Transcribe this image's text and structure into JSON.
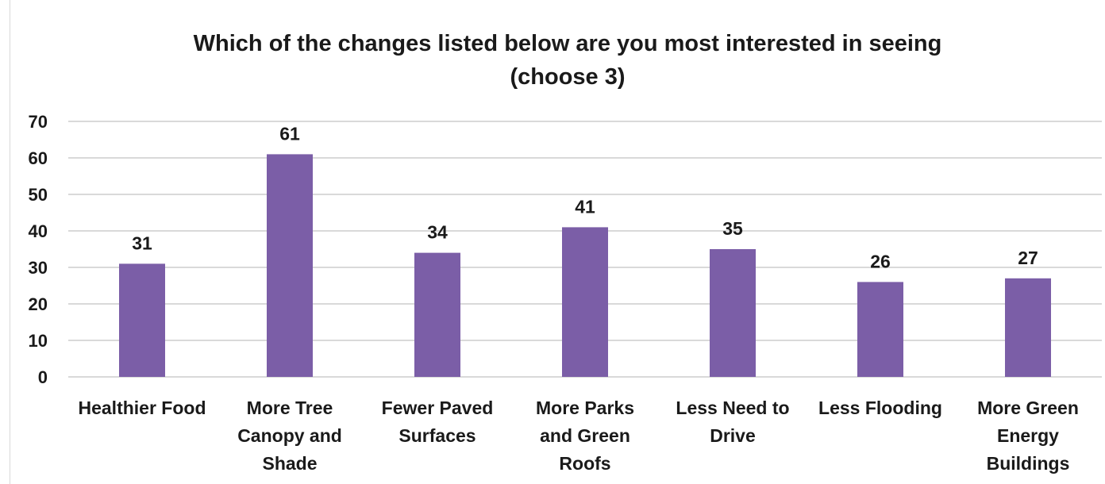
{
  "chart_data": {
    "type": "bar",
    "title": "Which of the changes listed below are you most interested in seeing",
    "subtitle": "(choose 3)",
    "categories": [
      [
        "Healthier Food"
      ],
      [
        "More Tree",
        "Canopy and",
        "Shade"
      ],
      [
        "Fewer Paved",
        "Surfaces"
      ],
      [
        "More Parks",
        "and Green",
        "Roofs"
      ],
      [
        "Less Need to",
        "Drive"
      ],
      [
        "Less Flooding"
      ],
      [
        "More Green",
        "Energy",
        "Buildings"
      ]
    ],
    "values": [
      31,
      61,
      34,
      41,
      35,
      26,
      27
    ],
    "ylim": [
      0,
      70
    ],
    "yticks": [
      0,
      10,
      20,
      30,
      40,
      50,
      60,
      70
    ],
    "xlabel": "",
    "ylabel": "",
    "grid": true,
    "legend": "none",
    "bar_color": "#7b5ea7",
    "grid_color": "#d9d9d9"
  }
}
